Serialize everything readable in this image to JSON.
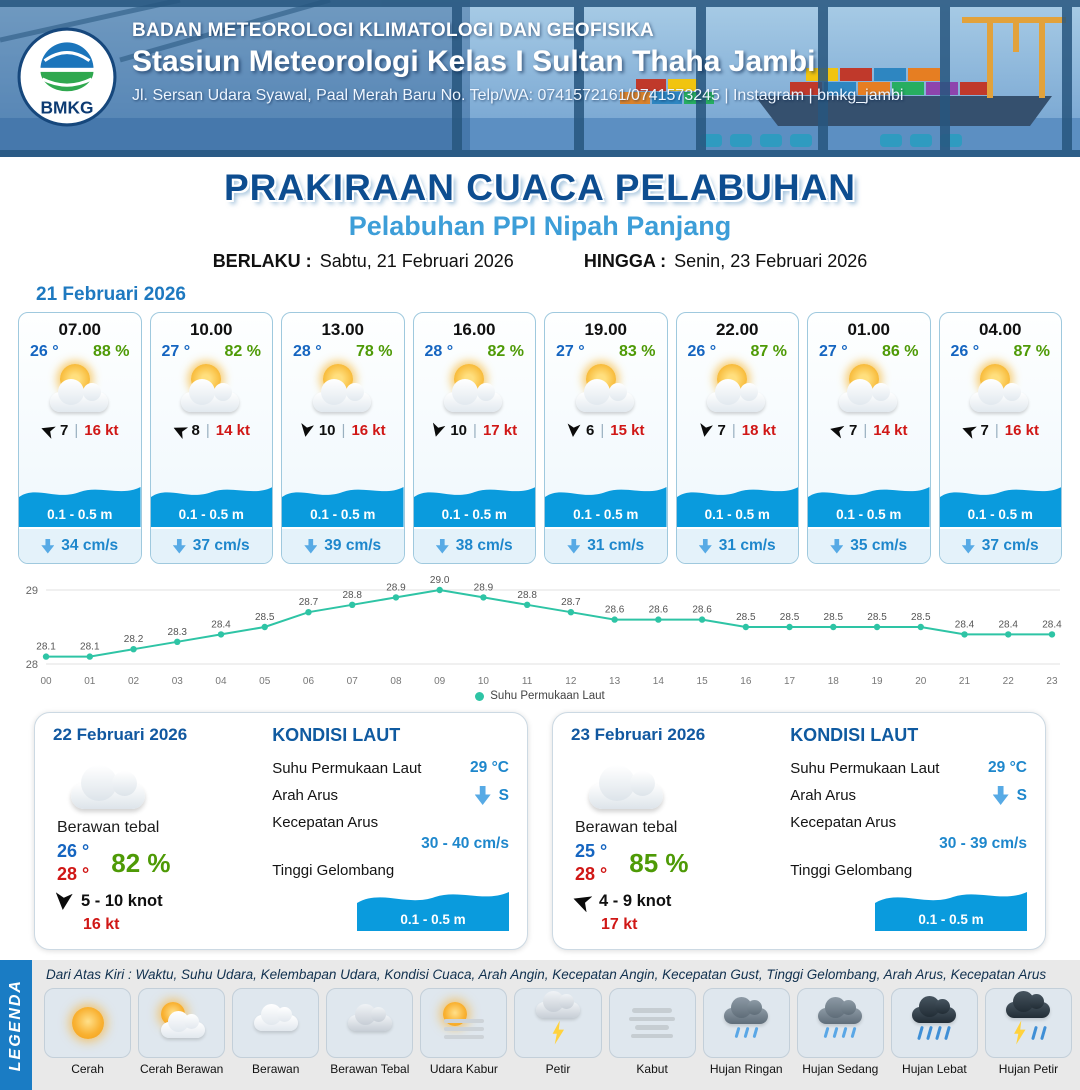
{
  "header": {
    "org": "BADAN METEOROLOGI KLIMATOLOGI DAN GEOFISIKA",
    "station": "Stasiun Meteorologi Kelas I Sultan Thaha Jambi",
    "address": "Jl. Sersan Udara Syawal, Paal Merah Baru No. Telp/WA: 0741572161/0741573245 | Instagram | bmkg_jambi",
    "logo_text": "BMKG"
  },
  "title": "PRAKIRAAN CUACA PELABUHAN",
  "subtitle": "Pelabuhan PPI Nipah Panjang",
  "validity": {
    "berlaku_label": "BERLAKU :",
    "berlaku_value": "Sabtu, 21 Februari 2026",
    "hingga_label": "HINGGA :",
    "hingga_value": "Senin, 23 Februari 2026"
  },
  "day1": {
    "date": "21 Februari 2026",
    "cards": [
      {
        "time": "07.00",
        "temp": "26 °",
        "rh": "88 %",
        "wind_dir_deg": 200,
        "wind": "7",
        "gust": "16 kt",
        "wave": "0.1 - 0.5 m",
        "current": "34 cm/s"
      },
      {
        "time": "10.00",
        "temp": "27 °",
        "rh": "82 %",
        "wind_dir_deg": 205,
        "wind": "8",
        "gust": "14 kt",
        "wave": "0.1 - 0.5 m",
        "current": "37 cm/s"
      },
      {
        "time": "13.00",
        "temp": "28 °",
        "rh": "78 %",
        "wind_dir_deg": 100,
        "wind": "10",
        "gust": "16 kt",
        "wave": "0.1 - 0.5 m",
        "current": "39 cm/s"
      },
      {
        "time": "16.00",
        "temp": "28 °",
        "rh": "82 %",
        "wind_dir_deg": 105,
        "wind": "10",
        "gust": "17 kt",
        "wave": "0.1 - 0.5 m",
        "current": "38 cm/s"
      },
      {
        "time": "19.00",
        "temp": "27 °",
        "rh": "83 %",
        "wind_dir_deg": 95,
        "wind": "6",
        "gust": "15 kt",
        "wave": "0.1 - 0.5 m",
        "current": "31 cm/s"
      },
      {
        "time": "22.00",
        "temp": "26 °",
        "rh": "87 %",
        "wind_dir_deg": 100,
        "wind": "7",
        "gust": "18 kt",
        "wave": "0.1 - 0.5 m",
        "current": "31 cm/s"
      },
      {
        "time": "01.00",
        "temp": "27 °",
        "rh": "86 %",
        "wind_dir_deg": 195,
        "wind": "7",
        "gust": "14 kt",
        "wave": "0.1 - 0.5 m",
        "current": "35 cm/s"
      },
      {
        "time": "04.00",
        "temp": "26 °",
        "rh": "87 %",
        "wind_dir_deg": 200,
        "wind": "7",
        "gust": "16 kt",
        "wave": "0.1 - 0.5 m",
        "current": "37 cm/s"
      }
    ]
  },
  "chart_data": {
    "type": "line",
    "x": [
      "00",
      "01",
      "02",
      "03",
      "04",
      "05",
      "06",
      "07",
      "08",
      "09",
      "10",
      "11",
      "12",
      "13",
      "14",
      "15",
      "16",
      "17",
      "18",
      "19",
      "20",
      "21",
      "22",
      "23"
    ],
    "values": [
      28.1,
      28.1,
      28.2,
      28.3,
      28.4,
      28.5,
      28.7,
      28.8,
      28.9,
      29.0,
      28.9,
      28.8,
      28.7,
      28.6,
      28.6,
      28.6,
      28.5,
      28.5,
      28.5,
      28.5,
      28.5,
      28.4,
      28.4,
      28.4
    ],
    "ylim": [
      28,
      29
    ],
    "line_color": "#2ec4a5",
    "legend_label": "Suhu Permukaan Laut",
    "xlabel": "",
    "ylabel": "",
    "grid": true,
    "legend_position": "bottom"
  },
  "day2": {
    "date": "22 Februari 2026",
    "condition": "Berawan tebal",
    "temp_min": "26 °",
    "temp_max": "28 °",
    "rh": "82 %",
    "wind_dir_deg": 95,
    "wind_range": "5  - 10 knot",
    "gust": "16 kt",
    "sea": {
      "heading": "KONDISI LAUT",
      "sst_label": "Suhu Permukaan Laut",
      "sst_value": "29 °C",
      "current_dir_label": "Arah Arus",
      "current_dir": "S",
      "current_speed_label": "Kecepatan Arus",
      "current_speed": "30  - 40 cm/s",
      "wave_label": "Tinggi Gelombang",
      "wave_value": "0.1 - 0.5 m"
    }
  },
  "day3": {
    "date": "23 Februari 2026",
    "condition": "Berawan tebal",
    "temp_min": "25 °",
    "temp_max": "28 °",
    "rh": "85 %",
    "wind_dir_deg": 200,
    "wind_range": "4  - 9 knot",
    "gust": "17 kt",
    "sea": {
      "heading": "KONDISI LAUT",
      "sst_label": "Suhu Permukaan Laut",
      "sst_value": "29 °C",
      "current_dir_label": "Arah Arus",
      "current_dir": "S",
      "current_speed_label": "Kecepatan Arus",
      "current_speed": "30  - 39 cm/s",
      "wave_label": "Tinggi Gelombang",
      "wave_value": "0.1 - 0.5 m"
    }
  },
  "legend": {
    "bar_label": "LEGENDA",
    "description": "Dari Atas Kiri : Waktu, Suhu Udara, Kelembapan Udara, Kondisi Cuaca, Arah Angin, Kecepatan Angin, Kecepatan Gust, Tinggi Gelombang, Arah Arus, Kecepatan Arus",
    "items": [
      {
        "label": "Cerah",
        "icon": "sun"
      },
      {
        "label": "Cerah Berawan",
        "icon": "sun-cloud"
      },
      {
        "label": "Berawan",
        "icon": "cloud"
      },
      {
        "label": "Berawan Tebal",
        "icon": "cloud-thick"
      },
      {
        "label": "Udara Kabur",
        "icon": "haze"
      },
      {
        "label": "Petir",
        "icon": "lightning"
      },
      {
        "label": "Kabut",
        "icon": "fog"
      },
      {
        "label": "Hujan Ringan",
        "icon": "rain-light"
      },
      {
        "label": "Hujan Sedang",
        "icon": "rain-moderate"
      },
      {
        "label": "Hujan Lebat",
        "icon": "rain-heavy"
      },
      {
        "label": "Hujan Petir",
        "icon": "thunderstorm"
      }
    ]
  },
  "colors": {
    "accent_blue": "#1e87cc",
    "title_blue": "#0d4d90",
    "subtitle_blue": "#3d9ed8",
    "humidity_green": "#4e9a06",
    "gust_red": "#d01716",
    "wave_blue": "#0a9bdd",
    "sst_line": "#2ec4a5"
  }
}
